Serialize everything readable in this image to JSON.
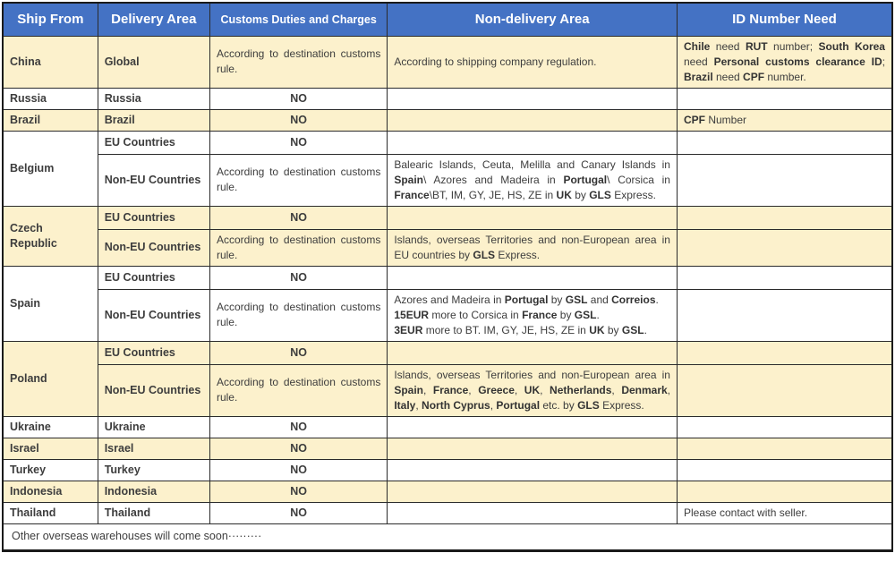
{
  "colors": {
    "header_bg": "#4472C4",
    "header_text": "#FFFFFF",
    "row_cream": "#FCF1CC",
    "row_white": "#FFFFFF",
    "border": "#2b2b2b",
    "text": "#3d3d3d"
  },
  "table": {
    "headers": [
      "Ship From",
      "Delivery Area",
      "Customs Duties and Charges",
      "Non-delivery Area",
      "ID Number Need"
    ],
    "groups": [
      {
        "ship_from": "China",
        "shade": "cream",
        "subrows": [
          {
            "delivery_area": "Global",
            "customs": {
              "label": "According to destination customs rule.",
              "style": "text"
            },
            "non_delivery": [
              [
                {
                  "t": "According to shipping company regulation.",
                  "b": false
                }
              ]
            ],
            "id_need": [
              [
                {
                  "t": "Chile",
                  "b": true
                },
                {
                  "t": " need ",
                  "b": false
                },
                {
                  "t": "RUT",
                  "b": true
                },
                {
                  "t": " number; ",
                  "b": false
                },
                {
                  "t": "South Korea",
                  "b": true
                },
                {
                  "t": " need ",
                  "b": false
                },
                {
                  "t": "Personal customs clearance ID",
                  "b": true
                },
                {
                  "t": "; ",
                  "b": false
                },
                {
                  "t": "Brazil",
                  "b": true
                },
                {
                  "t": " need ",
                  "b": false
                },
                {
                  "t": "CPF",
                  "b": true
                },
                {
                  "t": " number.",
                  "b": false
                }
              ]
            ]
          }
        ]
      },
      {
        "ship_from": "Russia",
        "shade": "white",
        "subrows": [
          {
            "delivery_area": "Russia",
            "customs": {
              "label": "NO",
              "style": "no"
            },
            "non_delivery": [],
            "id_need": []
          }
        ]
      },
      {
        "ship_from": "Brazil",
        "shade": "cream",
        "subrows": [
          {
            "delivery_area": "Brazil",
            "customs": {
              "label": "NO",
              "style": "no"
            },
            "non_delivery": [],
            "id_need": [
              [
                {
                  "t": "CPF",
                  "b": true
                },
                {
                  "t": " Number",
                  "b": false
                }
              ]
            ]
          }
        ]
      },
      {
        "ship_from": "Belgium",
        "shade": "white",
        "subrows": [
          {
            "delivery_area": "EU Countries",
            "customs": {
              "label": "NO",
              "style": "no"
            },
            "non_delivery": [],
            "id_need": []
          },
          {
            "delivery_area": "Non-EU Countries",
            "customs": {
              "label": "According to destination customs rule.",
              "style": "text"
            },
            "non_delivery": [
              [
                {
                  "t": "Balearic Islands, Ceuta, Melilla and Canary Islands in ",
                  "b": false
                },
                {
                  "t": "Spain",
                  "b": true
                },
                {
                  "t": "\\ Azores and Madeira in ",
                  "b": false
                },
                {
                  "t": "Portugal",
                  "b": true
                },
                {
                  "t": "\\ Corsica in ",
                  "b": false
                },
                {
                  "t": "France",
                  "b": true
                },
                {
                  "t": "\\BT, IM, GY, JE, HS, ZE in ",
                  "b": false
                },
                {
                  "t": "UK",
                  "b": true
                },
                {
                  "t": " by ",
                  "b": false
                },
                {
                  "t": "GLS",
                  "b": true
                },
                {
                  "t": " Express.",
                  "b": false
                }
              ]
            ],
            "id_need": []
          }
        ]
      },
      {
        "ship_from": "Czech Republic",
        "shade": "cream",
        "subrows": [
          {
            "delivery_area": "EU Countries",
            "customs": {
              "label": "NO",
              "style": "no"
            },
            "non_delivery": [],
            "id_need": []
          },
          {
            "delivery_area": "Non-EU Countries",
            "customs": {
              "label": "According to destination customs rule.",
              "style": "text"
            },
            "non_delivery": [
              [
                {
                  "t": "Islands, overseas Territories and non-European area in EU countries by ",
                  "b": false
                },
                {
                  "t": "GLS",
                  "b": true
                },
                {
                  "t": " Express.",
                  "b": false
                }
              ]
            ],
            "id_need": []
          }
        ]
      },
      {
        "ship_from": "Spain",
        "shade": "white",
        "subrows": [
          {
            "delivery_area": "EU Countries",
            "customs": {
              "label": "NO",
              "style": "no"
            },
            "non_delivery": [],
            "id_need": []
          },
          {
            "delivery_area": "Non-EU Countries",
            "customs": {
              "label": "According to destination customs rule.",
              "style": "text"
            },
            "non_delivery": [
              [
                {
                  "t": "Azores and Madeira in ",
                  "b": false
                },
                {
                  "t": "Portugal",
                  "b": true
                },
                {
                  "t": " by ",
                  "b": false
                },
                {
                  "t": "GSL",
                  "b": true
                },
                {
                  "t": " and ",
                  "b": false
                },
                {
                  "t": "Correios",
                  "b": true
                },
                {
                  "t": ".",
                  "b": false
                }
              ],
              [
                {
                  "t": "15EUR",
                  "b": true
                },
                {
                  "t": " more to Corsica in ",
                  "b": false
                },
                {
                  "t": "France",
                  "b": true
                },
                {
                  "t": " by ",
                  "b": false
                },
                {
                  "t": "GSL",
                  "b": true
                },
                {
                  "t": ".",
                  "b": false
                }
              ],
              [
                {
                  "t": "3EUR",
                  "b": true
                },
                {
                  "t": " more to BT. IM, GY, JE, HS, ZE in ",
                  "b": false
                },
                {
                  "t": "UK",
                  "b": true
                },
                {
                  "t": " by ",
                  "b": false
                },
                {
                  "t": "GSL",
                  "b": true
                },
                {
                  "t": ".",
                  "b": false
                }
              ]
            ],
            "id_need": []
          }
        ]
      },
      {
        "ship_from": "Poland",
        "shade": "cream",
        "subrows": [
          {
            "delivery_area": "EU Countries",
            "customs": {
              "label": "NO",
              "style": "no"
            },
            "non_delivery": [],
            "id_need": []
          },
          {
            "delivery_area": "Non-EU Countries",
            "customs": {
              "label": "According to destination customs rule.",
              "style": "text"
            },
            "non_delivery": [
              [
                {
                  "t": "Islands, overseas Territories and non-European area in ",
                  "b": false
                },
                {
                  "t": "Spain",
                  "b": true
                },
                {
                  "t": ", ",
                  "b": false
                },
                {
                  "t": "France",
                  "b": true
                },
                {
                  "t": ", ",
                  "b": false
                },
                {
                  "t": "Greece",
                  "b": true
                },
                {
                  "t": ", ",
                  "b": false
                },
                {
                  "t": "UK",
                  "b": true
                },
                {
                  "t": ", ",
                  "b": false
                },
                {
                  "t": "Netherlands",
                  "b": true
                },
                {
                  "t": ", ",
                  "b": false
                },
                {
                  "t": "Denmark",
                  "b": true
                },
                {
                  "t": ", ",
                  "b": false
                },
                {
                  "t": "Italy",
                  "b": true
                },
                {
                  "t": ", ",
                  "b": false
                },
                {
                  "t": "North Cyprus",
                  "b": true
                },
                {
                  "t": ", ",
                  "b": false
                },
                {
                  "t": "Portugal",
                  "b": true
                },
                {
                  "t": " etc. by ",
                  "b": false
                },
                {
                  "t": "GLS",
                  "b": true
                },
                {
                  "t": " Express.",
                  "b": false
                }
              ]
            ],
            "id_need": []
          }
        ]
      },
      {
        "ship_from": "Ukraine",
        "shade": "white",
        "subrows": [
          {
            "delivery_area": "Ukraine",
            "customs": {
              "label": "NO",
              "style": "no"
            },
            "non_delivery": [],
            "id_need": []
          }
        ]
      },
      {
        "ship_from": "Israel",
        "shade": "cream",
        "subrows": [
          {
            "delivery_area": "Israel",
            "customs": {
              "label": "NO",
              "style": "no"
            },
            "non_delivery": [],
            "id_need": []
          }
        ]
      },
      {
        "ship_from": "Turkey",
        "shade": "white",
        "subrows": [
          {
            "delivery_area": "Turkey",
            "customs": {
              "label": "NO",
              "style": "no"
            },
            "non_delivery": [],
            "id_need": []
          }
        ]
      },
      {
        "ship_from": "Indonesia",
        "shade": "cream",
        "subrows": [
          {
            "delivery_area": "Indonesia",
            "customs": {
              "label": "NO",
              "style": "no"
            },
            "non_delivery": [],
            "id_need": []
          }
        ]
      },
      {
        "ship_from": "Thailand",
        "shade": "white",
        "subrows": [
          {
            "delivery_area": "Thailand",
            "customs": {
              "label": "NO",
              "style": "no"
            },
            "non_delivery": [],
            "id_need": [
              [
                {
                  "t": "Please contact with seller.",
                  "b": false
                }
              ]
            ]
          }
        ]
      }
    ]
  },
  "footer": {
    "text": "Other overseas warehouses will come soon·········"
  }
}
